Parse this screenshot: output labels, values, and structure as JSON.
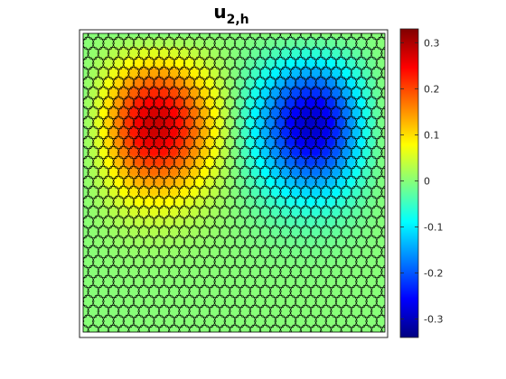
{
  "chart_data": {
    "type": "heatmap",
    "title": {
      "base": "u",
      "subscript": "2,h"
    },
    "xlabel": "",
    "ylabel": "",
    "colormap": "jet",
    "mesh": "polygonal (hexagonal-like) elements overlaid with black edges",
    "colorbar": {
      "clim": [
        -0.34,
        0.33
      ],
      "ticks": [
        0.3,
        0.2,
        0.1,
        0,
        -0.1,
        -0.2,
        -0.3
      ],
      "tick_labels": [
        "0.3",
        "0.2",
        "0.1",
        "0",
        "-0.1",
        "-0.2",
        "-0.3"
      ],
      "location": "right"
    },
    "field_extrema": [
      {
        "label": "max",
        "value": 0.33,
        "location": "upper-left"
      },
      {
        "label": "min",
        "value": -0.34,
        "location": "upper-right"
      }
    ]
  }
}
